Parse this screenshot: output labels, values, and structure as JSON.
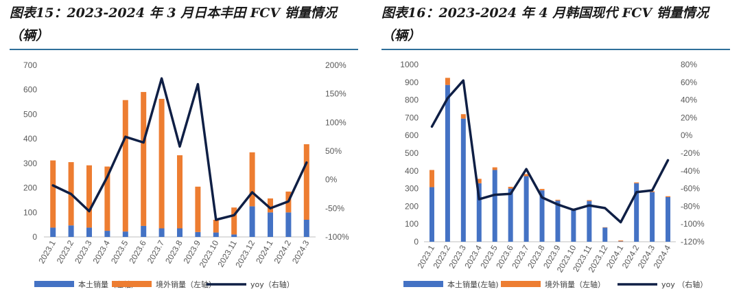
{
  "panels": [
    {
      "title_line1": "图表15：2023-2024 年 3 月日本丰田 FCV 销量情况",
      "title_line2": "（辆）",
      "legend": [
        "本土销量（左轴）",
        "境外销量（左轴）",
        "yoy（右轴）"
      ]
    },
    {
      "title_line1": "图表16：2023-2024 年 4 月韩国现代 FCV 销量情况",
      "title_line2": "（辆）",
      "legend": [
        "本土销量(左轴)",
        "境外销量（左轴）",
        "yoy （右轴）"
      ]
    }
  ],
  "colors": {
    "domestic": "#4472c4",
    "overseas": "#ed7d31",
    "yoy": "#0f1f45",
    "rule": "#2f6f9a"
  },
  "chart_data": [
    {
      "type": "bar",
      "stacked": true,
      "categories": [
        "2023.1",
        "2023.2",
        "2023.3",
        "2023.4",
        "2023.5",
        "2023.6",
        "2023.7",
        "2023.8",
        "2023.9",
        "2023.10",
        "2023.11",
        "2023.12",
        "2024.1",
        "2024.2",
        "2024.3"
      ],
      "series": [
        {
          "name": "本土销量（左轴）",
          "type": "bar",
          "axis": "left",
          "values": [
            38,
            47,
            38,
            25,
            22,
            45,
            35,
            35,
            20,
            18,
            10,
            125,
            100,
            100,
            70
          ]
        },
        {
          "name": "境外销量（左轴）",
          "type": "bar",
          "axis": "left",
          "values": [
            274,
            258,
            254,
            262,
            536,
            546,
            528,
            298,
            185,
            52,
            110,
            220,
            57,
            85,
            308
          ]
        },
        {
          "name": "yoy（右轴）",
          "type": "line",
          "axis": "right",
          "values": [
            -10,
            -25,
            -55,
            5,
            75,
            65,
            177,
            58,
            167,
            -70,
            -62,
            -22,
            -50,
            -38,
            30
          ]
        }
      ],
      "left_axis": {
        "min": 0,
        "max": 700,
        "ticks": [
          0,
          100,
          200,
          300,
          400,
          500,
          600,
          700
        ]
      },
      "right_axis": {
        "min": -100,
        "max": 200,
        "ticks": [
          -100,
          -50,
          0,
          50,
          100,
          150,
          200
        ],
        "tick_labels": [
          "-100%",
          "-50%",
          "0%",
          "50%",
          "100%",
          "150%",
          "200%"
        ]
      },
      "grid": false,
      "legend_position": "bottom"
    },
    {
      "type": "bar",
      "stacked": true,
      "categories": [
        "2023.1",
        "2023.2",
        "2023.3",
        "2023.4",
        "2023.5",
        "2023.6",
        "2023.7",
        "2023.8",
        "2023.9",
        "2023.10",
        "2023.11",
        "2023.12",
        "2024.1",
        "2024.2",
        "2024.3",
        "2024.4"
      ],
      "series": [
        {
          "name": "本土销量(左轴)",
          "type": "bar",
          "axis": "left",
          "values": [
            308,
            885,
            695,
            330,
            405,
            300,
            370,
            290,
            232,
            185,
            230,
            80,
            2,
            330,
            280,
            252
          ]
        },
        {
          "name": "境外销量（左轴）",
          "type": "bar",
          "axis": "left",
          "values": [
            97,
            40,
            25,
            25,
            15,
            10,
            12,
            8,
            5,
            3,
            5,
            2,
            5,
            5,
            5,
            5
          ]
        },
        {
          "name": "yoy （右轴）",
          "type": "line",
          "axis": "right",
          "values": [
            10,
            42,
            62,
            -72,
            -67,
            -66,
            -38,
            -70,
            -78,
            -84,
            -79,
            -82,
            -98,
            -64,
            -62,
            -28
          ]
        }
      ],
      "left_axis": {
        "min": 0,
        "max": 1000,
        "ticks": [
          0,
          100,
          200,
          300,
          400,
          500,
          600,
          700,
          800,
          900,
          1000
        ]
      },
      "right_axis": {
        "min": -120,
        "max": 80,
        "ticks": [
          -120,
          -100,
          -80,
          -60,
          -40,
          -20,
          0,
          20,
          40,
          60,
          80
        ],
        "tick_labels": [
          "-120%",
          "-100%",
          "-80%",
          "-60%",
          "-40%",
          "-20%",
          "0%",
          "20%",
          "40%",
          "60%",
          "80%"
        ]
      },
      "grid": false,
      "legend_position": "bottom"
    }
  ]
}
